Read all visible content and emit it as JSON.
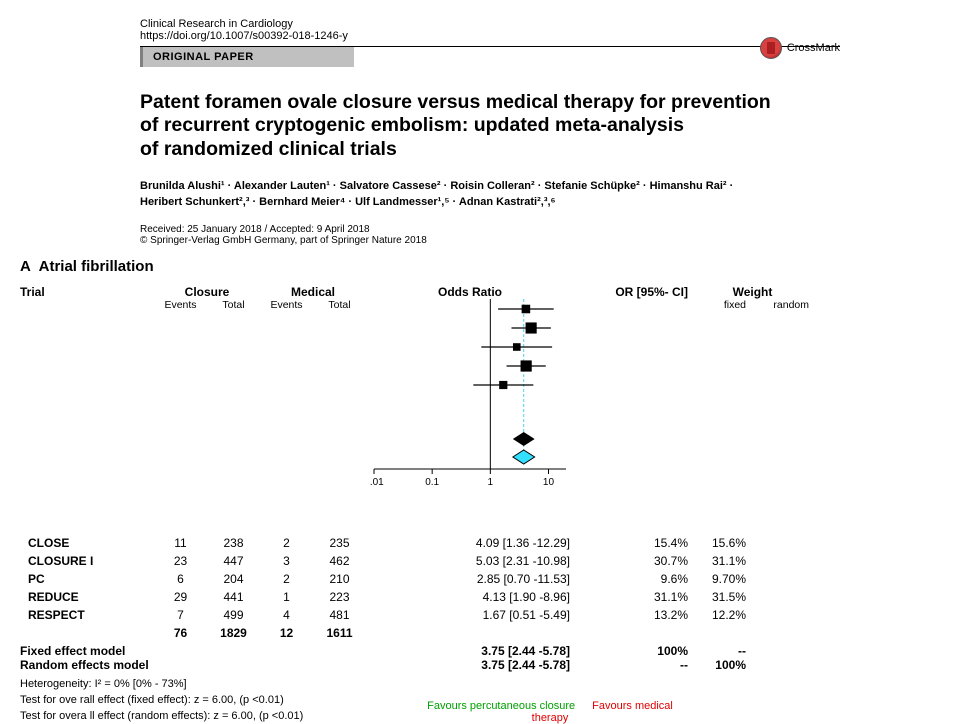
{
  "header": {
    "journal": "Clinical Research in Cardiology",
    "doi": "https://doi.org/10.1007/s00392-018-1246-y",
    "article_type": "ORIGINAL PAPER",
    "crossmark": "CrossMark",
    "title_line1": "Patent foramen ovale closure versus medical therapy for prevention",
    "title_line2": "of recurrent cryptogenic embolism: updated meta-analysis",
    "title_line3": "of randomized clinical trials",
    "authors_line1": "Brunilda Alushi¹ · Alexander Lauten¹ · Salvatore Cassese² · Roisin Colleran² · Stefanie Schüpke² · Himanshu Rai² ·",
    "authors_line2": "Heribert Schunkert²,³ · Bernhard Meier⁴ · Ulf Landmesser¹,⁵ · Adnan Kastrati²,³,⁶",
    "dates": "Received: 25 January 2018 / Accepted: 9 April 2018",
    "copyright": "© Springer-Verlag GmbH Germany, part of Springer Nature 2018"
  },
  "forest": {
    "panel_label": "A",
    "panel_title": "Atrial fibrillation",
    "headers": {
      "trial": "Trial",
      "closure": "Closure",
      "medical": "Medical",
      "odds_ratio": "Odds Ratio",
      "or_ci": "OR [95%- CI]",
      "weight": "Weight",
      "events": "Events",
      "total": "Total",
      "fixed": "fixed",
      "random": "random"
    },
    "rows": [
      {
        "trial": "CLOSE",
        "ce": "11",
        "ct": "238",
        "me": "2",
        "mt": "235",
        "or": 4.09,
        "lo": 1.36,
        "hi": 12.29,
        "ci": "4.09 [1.36 -12.29]",
        "wf": "15.4%",
        "wr": "15.6%"
      },
      {
        "trial": "CLOSURE I",
        "ce": "23",
        "ct": "447",
        "me": "3",
        "mt": "462",
        "or": 5.03,
        "lo": 2.31,
        "hi": 10.98,
        "ci": "5.03 [2.31 -10.98]",
        "wf": "30.7%",
        "wr": "31.1%"
      },
      {
        "trial": "PC",
        "ce": "6",
        "ct": "204",
        "me": "2",
        "mt": "210",
        "or": 2.85,
        "lo": 0.7,
        "hi": 11.53,
        "ci": "2.85 [0.70 -11.53]",
        "wf": "9.6%",
        "wr": "9.70%"
      },
      {
        "trial": "REDUCE",
        "ce": "29",
        "ct": "441",
        "me": "1",
        "mt": "223",
        "or": 4.13,
        "lo": 1.9,
        "hi": 8.96,
        "ci": "4.13 [1.90 -8.96]",
        "wf": "31.1%",
        "wr": "31.5%"
      },
      {
        "trial": "RESPECT",
        "ce": "7",
        "ct": "499",
        "me": "4",
        "mt": "481",
        "or": 1.67,
        "lo": 0.51,
        "hi": 5.49,
        "ci": "1.67 [0.51 -5.49]",
        "wf": "13.2%",
        "wr": "12.2%"
      }
    ],
    "totals": {
      "ce": "76",
      "ct": "1829",
      "me": "12",
      "mt": "1611"
    },
    "fixed": {
      "label": "Fixed effect model",
      "or": 3.75,
      "lo": 2.44,
      "hi": 5.78,
      "ci": "3.75 [2.44 -5.78]",
      "wf": "100%",
      "wr": "--"
    },
    "random": {
      "label": "Random effects model",
      "or": 3.75,
      "lo": 2.44,
      "hi": 5.78,
      "ci": "3.75 [2.44 -5.78]",
      "wf": "--",
      "wr": "100%"
    },
    "heterogeneity": "Heterogeneity:  I² = 0% [0% - 73%]",
    "test_fixed": "Test for ove rall effect (fixed effect):  z  = 6.00, (p <0.01)",
    "test_random": "Test for overa ll effect (random effects):  z  = 6.00, (p <0.01)",
    "axis_ticks": [
      "0.01",
      "0.1",
      "1",
      "10"
    ],
    "favours_left": "Favours percutaneous closure",
    "favours_right": "Favours medical therapy",
    "colors": {
      "pooled_line": "#4dd2e6",
      "fixed_diamond": "#000000",
      "random_diamond_fill": "#33e0ff",
      "random_diamond_stroke": "#000000",
      "marker": "#000000"
    }
  }
}
